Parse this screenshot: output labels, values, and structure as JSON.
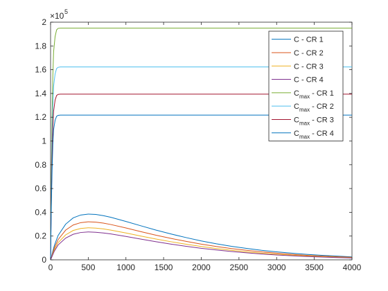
{
  "chart_data": {
    "type": "line",
    "title": "",
    "xlabel": "",
    "ylabel": "",
    "xlim": [
      0,
      4000
    ],
    "ylim": [
      0,
      200000
    ],
    "y_exponent_label": "×10",
    "y_exponent_power": "5",
    "x_ticks": [
      {
        "value": 0,
        "label": "0"
      },
      {
        "value": 500,
        "label": "500"
      },
      {
        "value": 1000,
        "label": "1000"
      },
      {
        "value": 1500,
        "label": "1500"
      },
      {
        "value": 2000,
        "label": "2000"
      },
      {
        "value": 2500,
        "label": "2500"
      },
      {
        "value": 3000,
        "label": "3000"
      },
      {
        "value": 3500,
        "label": "3500"
      },
      {
        "value": 4000,
        "label": "4000"
      }
    ],
    "y_ticks": [
      {
        "value": 0,
        "label": "0"
      },
      {
        "value": 20000,
        "label": "0.2"
      },
      {
        "value": 40000,
        "label": "0.4"
      },
      {
        "value": 60000,
        "label": "0.6"
      },
      {
        "value": 80000,
        "label": "0.8"
      },
      {
        "value": 100000,
        "label": "1"
      },
      {
        "value": 120000,
        "label": "1.2"
      },
      {
        "value": 140000,
        "label": "1.4"
      },
      {
        "value": 160000,
        "label": "1.6"
      },
      {
        "value": 180000,
        "label": "1.8"
      },
      {
        "value": 200000,
        "label": "2"
      }
    ],
    "grid": false,
    "legend_position": "top-right",
    "series": [
      {
        "name": "C - CR 1",
        "name_main": "C",
        "name_sub": "",
        "name_suffix": " - CR 1",
        "color": "#0072BD",
        "x": [
          0,
          50,
          100,
          200,
          300,
          400,
          500,
          600,
          700,
          800,
          1000,
          1200,
          1400,
          1600,
          1800,
          2000,
          2200,
          2400,
          2600,
          2800,
          3000,
          3200,
          3400,
          3600,
          3800,
          4000
        ],
        "y": [
          0,
          12000,
          20500,
          30000,
          35300,
          37700,
          38500,
          38200,
          37200,
          35800,
          32300,
          28600,
          25000,
          21700,
          18700,
          15900,
          13500,
          11400,
          9600,
          8000,
          6700,
          5600,
          4600,
          3800,
          3100,
          2500
        ]
      },
      {
        "name": "C - CR 2",
        "name_main": "C",
        "name_sub": "",
        "name_suffix": " - CR 2",
        "color": "#D95319",
        "x": [
          0,
          50,
          100,
          200,
          300,
          400,
          500,
          600,
          700,
          800,
          1000,
          1200,
          1400,
          1600,
          1800,
          2000,
          2200,
          2400,
          2600,
          2800,
          3000,
          3200,
          3400,
          3600,
          3800,
          4000
        ],
        "y": [
          0,
          10000,
          17000,
          25000,
          29300,
          31300,
          32000,
          31700,
          30900,
          29700,
          26800,
          23700,
          20700,
          18000,
          15500,
          13200,
          11200,
          9500,
          8000,
          6700,
          5600,
          4600,
          3800,
          3100,
          2600,
          2100
        ]
      },
      {
        "name": "C - CR 3",
        "name_main": "C",
        "name_sub": "",
        "name_suffix": " - CR 3",
        "color": "#EDB120",
        "x": [
          0,
          50,
          100,
          200,
          300,
          400,
          500,
          600,
          700,
          800,
          1000,
          1200,
          1400,
          1600,
          1800,
          2000,
          2200,
          2400,
          2600,
          2800,
          3000,
          3200,
          3400,
          3600,
          3800,
          4000
        ],
        "y": [
          0,
          8500,
          14500,
          21000,
          24700,
          26400,
          27000,
          26700,
          26000,
          25000,
          22600,
          20000,
          17500,
          15200,
          13100,
          11200,
          9500,
          8000,
          6700,
          5600,
          4700,
          3900,
          3200,
          2700,
          2200,
          1800
        ]
      },
      {
        "name": "C - CR 4",
        "name_main": "C",
        "name_sub": "",
        "name_suffix": " - CR 4",
        "color": "#7E2F8E",
        "x": [
          0,
          50,
          100,
          200,
          300,
          400,
          500,
          600,
          700,
          800,
          1000,
          1200,
          1400,
          1600,
          1800,
          2000,
          2200,
          2400,
          2600,
          2800,
          3000,
          3200,
          3400,
          3600,
          3800,
          4000
        ],
        "y": [
          0,
          7300,
          12500,
          18300,
          21500,
          23000,
          23500,
          23200,
          22600,
          21800,
          19700,
          17400,
          15200,
          13200,
          11400,
          9700,
          8300,
          7000,
          5900,
          4900,
          4100,
          3400,
          2800,
          2300,
          1900,
          1500
        ]
      },
      {
        "name": "Cmax - CR 1",
        "name_main": "C",
        "name_sub": "max",
        "name_suffix": " - CR 1",
        "color": "#77AC30",
        "x": [
          0,
          10,
          20,
          30,
          40,
          60,
          80,
          100,
          130,
          4000
        ],
        "y": [
          0,
          70000,
          120000,
          155000,
          175000,
          188000,
          193500,
          194800,
          195000,
          195000
        ]
      },
      {
        "name": "Cmax - CR 2",
        "name_main": "C",
        "name_sub": "max",
        "name_suffix": " - CR 2",
        "color": "#4DBEEE",
        "x": [
          0,
          10,
          20,
          30,
          40,
          60,
          80,
          100,
          130,
          4000
        ],
        "y": [
          0,
          58000,
          100000,
          129000,
          146000,
          156500,
          161000,
          162000,
          162300,
          162300
        ]
      },
      {
        "name": "Cmax - CR 3",
        "name_main": "C",
        "name_sub": "max",
        "name_suffix": " - CR 3",
        "color": "#A2142F",
        "x": [
          0,
          10,
          20,
          30,
          40,
          60,
          80,
          100,
          130,
          4000
        ],
        "y": [
          0,
          50000,
          86000,
          111000,
          125000,
          134500,
          138300,
          139200,
          139400,
          139400
        ]
      },
      {
        "name": "Cmax - CR 4",
        "name_main": "C",
        "name_sub": "max",
        "name_suffix": " - CR 4",
        "color": "#0072BD",
        "x": [
          0,
          10,
          20,
          30,
          40,
          60,
          80,
          100,
          130,
          4000
        ],
        "y": [
          0,
          44000,
          75000,
          97000,
          109500,
          117500,
          120800,
          121600,
          121800,
          121800
        ]
      }
    ]
  }
}
